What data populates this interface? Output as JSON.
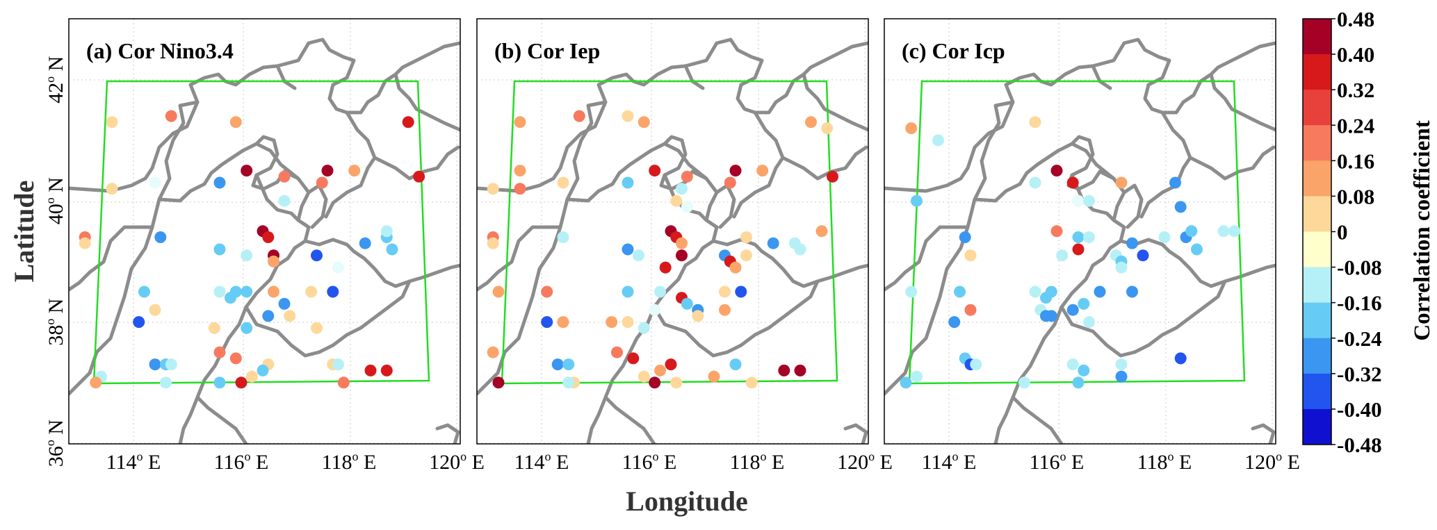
{
  "figure": {
    "xlabel": "Longitude",
    "ylabel": "Latitude",
    "lon_ticks": [
      "114",
      "116",
      "118",
      "120"
    ],
    "lon_suffix": " E",
    "lat_ticks": [
      "36",
      "38",
      "40",
      "42"
    ],
    "lat_suffix": " N",
    "degree_mark": "o"
  },
  "colorbar": {
    "label": "Correlation coefficient",
    "ticks": [
      "0.48",
      "0.40",
      "0.32",
      "0.24",
      "0.16",
      "0.08",
      "0",
      "-0.08",
      "-0.16",
      "-0.24",
      "-0.32",
      "-0.40",
      "-0.48"
    ],
    "colors": [
      "#a50026",
      "#d7191c",
      "#e8413c",
      "#f77a5f",
      "#fba46a",
      "#fdd89a",
      "#ffffcc",
      "#e6fbfb",
      "#b5f0f7",
      "#66ccf5",
      "#3a96f0",
      "#2255f0",
      "#1010d0"
    ]
  },
  "chart_data": [
    {
      "type": "scatter",
      "title": "(a) Cor  Nino3.4",
      "value_range": [
        -0.48,
        0.48
      ],
      "points": [
        {
          "lon": 113.6,
          "lat": 41.3,
          "r": 0.12
        },
        {
          "lon": 114.7,
          "lat": 41.4,
          "r": 0.3
        },
        {
          "lon": 115.9,
          "lat": 41.3,
          "r": 0.22
        },
        {
          "lon": 119.1,
          "lat": 41.3,
          "r": 0.35
        },
        {
          "lon": 113.6,
          "lat": 40.2,
          "r": 0.1
        },
        {
          "lon": 114.4,
          "lat": 40.3,
          "r": -0.05
        },
        {
          "lon": 115.6,
          "lat": 40.3,
          "r": -0.3
        },
        {
          "lon": 116.1,
          "lat": 40.5,
          "r": 0.42
        },
        {
          "lon": 116.8,
          "lat": 40.4,
          "r": 0.3
        },
        {
          "lon": 117.6,
          "lat": 40.5,
          "r": 0.42
        },
        {
          "lon": 118.1,
          "lat": 40.5,
          "r": 0.22
        },
        {
          "lon": 117.5,
          "lat": 40.3,
          "r": 0.3
        },
        {
          "lon": 119.3,
          "lat": 40.4,
          "r": 0.35
        },
        {
          "lon": 116.8,
          "lat": 40.0,
          "r": -0.15
        },
        {
          "lon": 113.1,
          "lat": 39.4,
          "r": 0.3
        },
        {
          "lon": 113.1,
          "lat": 39.3,
          "r": 0.12
        },
        {
          "lon": 114.5,
          "lat": 39.4,
          "r": -0.25
        },
        {
          "lon": 115.6,
          "lat": 39.2,
          "r": -0.18
        },
        {
          "lon": 116.1,
          "lat": 39.1,
          "r": -0.1
        },
        {
          "lon": 116.4,
          "lat": 39.5,
          "r": 0.4
        },
        {
          "lon": 116.5,
          "lat": 39.4,
          "r": 0.32
        },
        {
          "lon": 116.6,
          "lat": 39.1,
          "r": 0.42
        },
        {
          "lon": 116.6,
          "lat": 39.0,
          "r": 0.2
        },
        {
          "lon": 117.4,
          "lat": 39.1,
          "r": -0.38
        },
        {
          "lon": 117.8,
          "lat": 38.9,
          "r": -0.08
        },
        {
          "lon": 118.3,
          "lat": 39.3,
          "r": -0.25
        },
        {
          "lon": 118.7,
          "lat": 39.4,
          "r": -0.18
        },
        {
          "lon": 118.8,
          "lat": 39.2,
          "r": -0.22
        },
        {
          "lon": 118.7,
          "lat": 39.5,
          "r": -0.15
        },
        {
          "lon": 114.2,
          "lat": 38.5,
          "r": -0.18
        },
        {
          "lon": 114.4,
          "lat": 38.2,
          "r": 0.1
        },
        {
          "lon": 114.1,
          "lat": 38.0,
          "r": -0.4
        },
        {
          "lon": 115.6,
          "lat": 38.5,
          "r": -0.15
        },
        {
          "lon": 115.8,
          "lat": 38.4,
          "r": -0.18
        },
        {
          "lon": 115.9,
          "lat": 38.5,
          "r": -0.2
        },
        {
          "lon": 116.1,
          "lat": 38.5,
          "r": -0.22
        },
        {
          "lon": 116.6,
          "lat": 38.5,
          "r": 0.2
        },
        {
          "lon": 116.8,
          "lat": 38.3,
          "r": -0.25
        },
        {
          "lon": 116.9,
          "lat": 38.1,
          "r": 0.12
        },
        {
          "lon": 116.5,
          "lat": 38.1,
          "r": -0.25
        },
        {
          "lon": 117.3,
          "lat": 38.5,
          "r": 0.15
        },
        {
          "lon": 117.7,
          "lat": 38.5,
          "r": -0.4
        },
        {
          "lon": 117.4,
          "lat": 37.9,
          "r": 0.1
        },
        {
          "lon": 115.5,
          "lat": 37.9,
          "r": 0.1
        },
        {
          "lon": 116.1,
          "lat": 37.9,
          "r": -0.18
        },
        {
          "lon": 113.4,
          "lat": 37.1,
          "r": -0.1
        },
        {
          "lon": 113.3,
          "lat": 37.0,
          "r": 0.2
        },
        {
          "lon": 114.4,
          "lat": 37.3,
          "r": -0.25
        },
        {
          "lon": 114.6,
          "lat": 37.3,
          "r": -0.2
        },
        {
          "lon": 114.7,
          "lat": 37.3,
          "r": -0.12
        },
        {
          "lon": 114.6,
          "lat": 37.0,
          "r": -0.1
        },
        {
          "lon": 115.6,
          "lat": 37.5,
          "r": 0.3
        },
        {
          "lon": 115.9,
          "lat": 37.4,
          "r": 0.25
        },
        {
          "lon": 116.2,
          "lat": 37.1,
          "r": 0.12
        },
        {
          "lon": 116.5,
          "lat": 37.3,
          "r": 0.1
        },
        {
          "lon": 116.4,
          "lat": 37.2,
          "r": -0.22
        },
        {
          "lon": 116.0,
          "lat": 37.0,
          "r": 0.32
        },
        {
          "lon": 115.6,
          "lat": 37.0,
          "r": -0.2
        },
        {
          "lon": 117.7,
          "lat": 37.3,
          "r": 0.12
        },
        {
          "lon": 117.8,
          "lat": 37.3,
          "r": -0.15
        },
        {
          "lon": 117.9,
          "lat": 37.0,
          "r": 0.25
        },
        {
          "lon": 118.4,
          "lat": 37.2,
          "r": 0.35
        },
        {
          "lon": 118.7,
          "lat": 37.2,
          "r": 0.38
        }
      ]
    },
    {
      "type": "scatter",
      "title": "(b) Cor  Iep",
      "value_range": [
        -0.48,
        0.48
      ],
      "points": [
        {
          "lon": 113.6,
          "lat": 41.3,
          "r": 0.22
        },
        {
          "lon": 114.7,
          "lat": 41.4,
          "r": 0.3
        },
        {
          "lon": 115.6,
          "lat": 41.4,
          "r": 0.12
        },
        {
          "lon": 115.9,
          "lat": 41.3,
          "r": 0.22
        },
        {
          "lon": 119.0,
          "lat": 41.3,
          "r": 0.22
        },
        {
          "lon": 119.3,
          "lat": 41.2,
          "r": 0.12
        },
        {
          "lon": 113.6,
          "lat": 40.5,
          "r": 0.2
        },
        {
          "lon": 113.6,
          "lat": 40.2,
          "r": 0.3
        },
        {
          "lon": 113.1,
          "lat": 40.2,
          "r": 0.1
        },
        {
          "lon": 114.4,
          "lat": 40.3,
          "r": 0.08
        },
        {
          "lon": 115.6,
          "lat": 40.3,
          "r": -0.18
        },
        {
          "lon": 116.1,
          "lat": 40.5,
          "r": 0.32
        },
        {
          "lon": 116.7,
          "lat": 40.4,
          "r": 0.3
        },
        {
          "lon": 117.6,
          "lat": 40.5,
          "r": 0.42
        },
        {
          "lon": 118.1,
          "lat": 40.5,
          "r": 0.22
        },
        {
          "lon": 117.5,
          "lat": 40.3,
          "r": 0.3
        },
        {
          "lon": 119.4,
          "lat": 40.4,
          "r": 0.35
        },
        {
          "lon": 116.6,
          "lat": 40.2,
          "r": -0.1
        },
        {
          "lon": 116.5,
          "lat": 40.0,
          "r": 0.1
        },
        {
          "lon": 116.7,
          "lat": 39.9,
          "r": -0.08
        },
        {
          "lon": 113.1,
          "lat": 39.4,
          "r": 0.3
        },
        {
          "lon": 113.1,
          "lat": 39.3,
          "r": 0.12
        },
        {
          "lon": 114.4,
          "lat": 39.4,
          "r": -0.15
        },
        {
          "lon": 115.6,
          "lat": 39.2,
          "r": -0.3
        },
        {
          "lon": 115.8,
          "lat": 39.1,
          "r": -0.1
        },
        {
          "lon": 116.4,
          "lat": 39.5,
          "r": 0.42
        },
        {
          "lon": 116.5,
          "lat": 39.4,
          "r": 0.35
        },
        {
          "lon": 116.6,
          "lat": 39.1,
          "r": 0.42
        },
        {
          "lon": 116.6,
          "lat": 39.3,
          "r": 0.2
        },
        {
          "lon": 116.3,
          "lat": 38.9,
          "r": 0.32
        },
        {
          "lon": 117.4,
          "lat": 39.1,
          "r": -0.3
        },
        {
          "lon": 117.5,
          "lat": 39.0,
          "r": 0.32
        },
        {
          "lon": 117.6,
          "lat": 38.9,
          "r": 0.2
        },
        {
          "lon": 117.8,
          "lat": 39.4,
          "r": 0.1
        },
        {
          "lon": 117.8,
          "lat": 39.1,
          "r": 0.12
        },
        {
          "lon": 118.3,
          "lat": 39.3,
          "r": -0.25
        },
        {
          "lon": 118.7,
          "lat": 39.3,
          "r": -0.1
        },
        {
          "lon": 118.8,
          "lat": 39.2,
          "r": -0.15
        },
        {
          "lon": 119.2,
          "lat": 39.5,
          "r": 0.2
        },
        {
          "lon": 113.2,
          "lat": 38.5,
          "r": 0.22
        },
        {
          "lon": 114.1,
          "lat": 38.5,
          "r": 0.3
        },
        {
          "lon": 114.1,
          "lat": 38.0,
          "r": -0.4
        },
        {
          "lon": 114.4,
          "lat": 38.0,
          "r": 0.22
        },
        {
          "lon": 115.6,
          "lat": 38.5,
          "r": -0.2
        },
        {
          "lon": 116.2,
          "lat": 38.5,
          "r": -0.15
        },
        {
          "lon": 116.6,
          "lat": 38.4,
          "r": 0.35
        },
        {
          "lon": 116.7,
          "lat": 38.3,
          "r": -0.18
        },
        {
          "lon": 116.9,
          "lat": 38.2,
          "r": -0.25
        },
        {
          "lon": 116.9,
          "lat": 38.1,
          "r": 0.1
        },
        {
          "lon": 116.1,
          "lat": 38.2,
          "r": -0.08
        },
        {
          "lon": 117.4,
          "lat": 38.5,
          "r": 0.1
        },
        {
          "lon": 117.7,
          "lat": 38.5,
          "r": -0.4
        },
        {
          "lon": 117.4,
          "lat": 38.2,
          "r": 0.22
        },
        {
          "lon": 115.3,
          "lat": 38.0,
          "r": 0.22
        },
        {
          "lon": 115.6,
          "lat": 38.0,
          "r": 0.12
        },
        {
          "lon": 115.9,
          "lat": 37.9,
          "r": -0.12
        },
        {
          "lon": 113.1,
          "lat": 37.5,
          "r": 0.22
        },
        {
          "lon": 113.2,
          "lat": 37.0,
          "r": 0.42
        },
        {
          "lon": 114.3,
          "lat": 37.3,
          "r": -0.25
        },
        {
          "lon": 114.5,
          "lat": 37.3,
          "r": -0.2
        },
        {
          "lon": 114.6,
          "lat": 37.0,
          "r": 0.1
        },
        {
          "lon": 114.5,
          "lat": 37.0,
          "r": -0.1
        },
        {
          "lon": 115.4,
          "lat": 37.5,
          "r": 0.3
        },
        {
          "lon": 115.7,
          "lat": 37.4,
          "r": 0.32
        },
        {
          "lon": 115.9,
          "lat": 37.1,
          "r": 0.1
        },
        {
          "lon": 116.4,
          "lat": 37.3,
          "r": 0.35
        },
        {
          "lon": 116.2,
          "lat": 37.2,
          "r": 0.2
        },
        {
          "lon": 116.1,
          "lat": 37.0,
          "r": 0.42
        },
        {
          "lon": 116.5,
          "lat": 37.0,
          "r": 0.1
        },
        {
          "lon": 117.2,
          "lat": 37.1,
          "r": 0.22
        },
        {
          "lon": 117.6,
          "lat": 37.3,
          "r": -0.2
        },
        {
          "lon": 117.9,
          "lat": 37.0,
          "r": 0.12
        },
        {
          "lon": 118.5,
          "lat": 37.2,
          "r": 0.4
        },
        {
          "lon": 118.8,
          "lat": 37.2,
          "r": 0.42
        }
      ]
    },
    {
      "type": "scatter",
      "title": "(c) Cor  Icp",
      "value_range": [
        -0.48,
        0.48
      ],
      "points": [
        {
          "lon": 113.3,
          "lat": 41.2,
          "r": 0.22
        },
        {
          "lon": 113.8,
          "lat": 41.0,
          "r": -0.15
        },
        {
          "lon": 115.6,
          "lat": 41.3,
          "r": 0.1
        },
        {
          "lon": 116.0,
          "lat": 40.5,
          "r": 0.42
        },
        {
          "lon": 115.6,
          "lat": 40.3,
          "r": -0.15
        },
        {
          "lon": 116.3,
          "lat": 40.3,
          "r": 0.32
        },
        {
          "lon": 116.4,
          "lat": 40.0,
          "r": -0.08
        },
        {
          "lon": 116.6,
          "lat": 40.0,
          "r": -0.15
        },
        {
          "lon": 117.2,
          "lat": 40.3,
          "r": 0.22
        },
        {
          "lon": 118.2,
          "lat": 40.3,
          "r": -0.25
        },
        {
          "lon": 118.3,
          "lat": 39.9,
          "r": -0.3
        },
        {
          "lon": 113.4,
          "lat": 40.0,
          "r": -0.2
        },
        {
          "lon": 114.3,
          "lat": 39.4,
          "r": -0.3
        },
        {
          "lon": 114.4,
          "lat": 39.1,
          "r": 0.12
        },
        {
          "lon": 116.0,
          "lat": 39.5,
          "r": 0.25
        },
        {
          "lon": 116.4,
          "lat": 39.4,
          "r": -0.22
        },
        {
          "lon": 116.6,
          "lat": 39.4,
          "r": -0.12
        },
        {
          "lon": 116.4,
          "lat": 39.2,
          "r": 0.32
        },
        {
          "lon": 116.1,
          "lat": 39.1,
          "r": -0.15
        },
        {
          "lon": 117.1,
          "lat": 39.1,
          "r": -0.12
        },
        {
          "lon": 117.2,
          "lat": 39.0,
          "r": -0.2
        },
        {
          "lon": 117.2,
          "lat": 38.9,
          "r": -0.1
        },
        {
          "lon": 117.4,
          "lat": 39.3,
          "r": -0.3
        },
        {
          "lon": 117.6,
          "lat": 39.1,
          "r": -0.38
        },
        {
          "lon": 118.0,
          "lat": 39.4,
          "r": -0.15
        },
        {
          "lon": 118.4,
          "lat": 39.4,
          "r": -0.25
        },
        {
          "lon": 118.5,
          "lat": 39.5,
          "r": -0.18
        },
        {
          "lon": 118.6,
          "lat": 39.2,
          "r": -0.2
        },
        {
          "lon": 119.1,
          "lat": 39.5,
          "r": -0.15
        },
        {
          "lon": 119.3,
          "lat": 39.5,
          "r": -0.12
        },
        {
          "lon": 113.3,
          "lat": 38.5,
          "r": -0.15
        },
        {
          "lon": 114.2,
          "lat": 38.5,
          "r": -0.2
        },
        {
          "lon": 114.1,
          "lat": 38.0,
          "r": -0.25
        },
        {
          "lon": 114.4,
          "lat": 38.2,
          "r": 0.25
        },
        {
          "lon": 115.6,
          "lat": 38.5,
          "r": -0.15
        },
        {
          "lon": 115.8,
          "lat": 38.4,
          "r": -0.18
        },
        {
          "lon": 115.9,
          "lat": 38.5,
          "r": -0.22
        },
        {
          "lon": 115.7,
          "lat": 38.2,
          "r": -0.1
        },
        {
          "lon": 115.8,
          "lat": 38.1,
          "r": -0.25
        },
        {
          "lon": 115.9,
          "lat": 38.1,
          "r": -0.28
        },
        {
          "lon": 116.3,
          "lat": 38.2,
          "r": -0.3
        },
        {
          "lon": 116.5,
          "lat": 38.3,
          "r": -0.2
        },
        {
          "lon": 116.6,
          "lat": 38.0,
          "r": -0.15
        },
        {
          "lon": 116.8,
          "lat": 38.5,
          "r": -0.25
        },
        {
          "lon": 117.4,
          "lat": 38.5,
          "r": -0.3
        },
        {
          "lon": 113.2,
          "lat": 37.0,
          "r": -0.2
        },
        {
          "lon": 113.4,
          "lat": 37.1,
          "r": -0.15
        },
        {
          "lon": 114.3,
          "lat": 37.4,
          "r": -0.2
        },
        {
          "lon": 114.4,
          "lat": 37.3,
          "r": -0.4
        },
        {
          "lon": 114.5,
          "lat": 37.3,
          "r": -0.12
        },
        {
          "lon": 115.4,
          "lat": 37.0,
          "r": -0.1
        },
        {
          "lon": 116.3,
          "lat": 37.3,
          "r": -0.12
        },
        {
          "lon": 116.5,
          "lat": 37.2,
          "r": -0.2
        },
        {
          "lon": 116.4,
          "lat": 37.0,
          "r": -0.22
        },
        {
          "lon": 117.2,
          "lat": 37.3,
          "r": -0.1
        },
        {
          "lon": 117.2,
          "lat": 37.1,
          "r": -0.3
        },
        {
          "lon": 118.3,
          "lat": 37.4,
          "r": -0.38
        }
      ]
    }
  ]
}
